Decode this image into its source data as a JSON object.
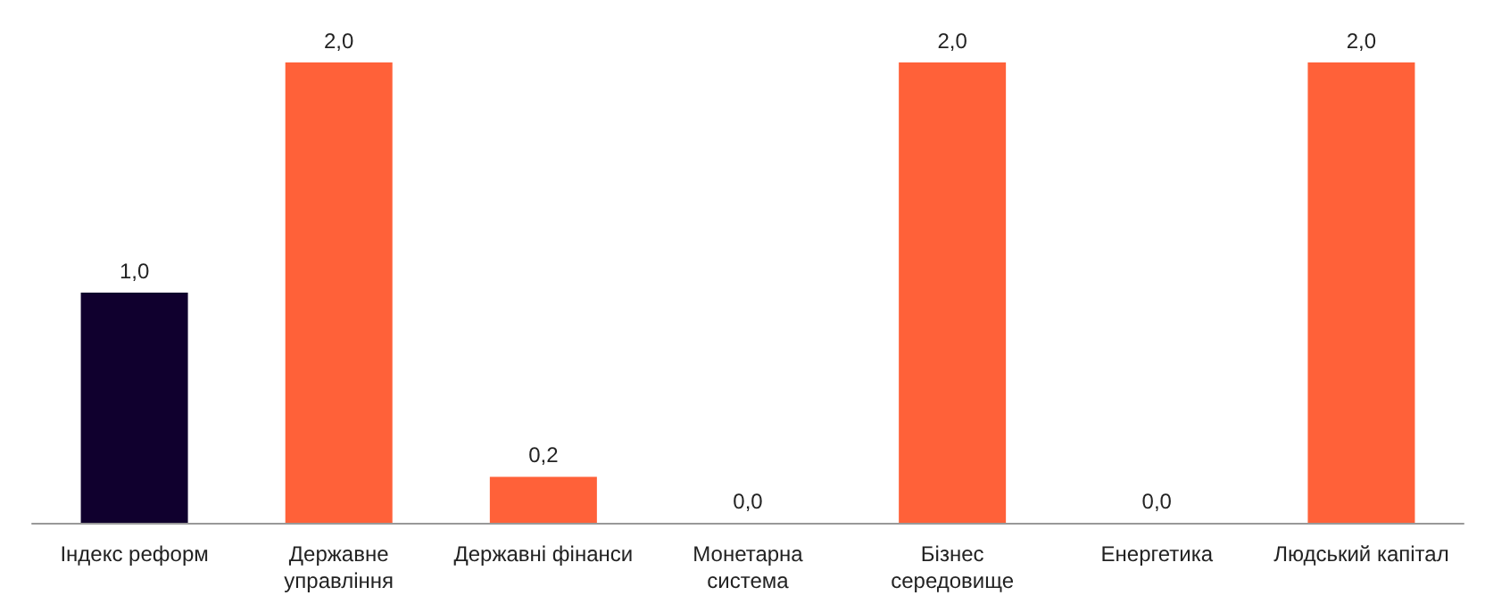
{
  "chart_data": {
    "type": "bar",
    "categories": [
      "Індекс реформ",
      "Державне управління",
      "Державні фінанси",
      "Монетарна система",
      "Бізнес середовище",
      "Енергетика",
      "Людський капітал"
    ],
    "values": [
      1.0,
      2.0,
      0.2,
      0.0,
      2.0,
      0.0,
      2.0
    ],
    "colors": [
      "#10002e",
      "#ff6139",
      "#ff6139",
      "#ff6139",
      "#ff6139",
      "#ff6139",
      "#ff6139"
    ],
    "value_labels": [
      "1,0",
      "2,0",
      "0,2",
      "0,0",
      "2,0",
      "0,0",
      "2,0"
    ]
  }
}
